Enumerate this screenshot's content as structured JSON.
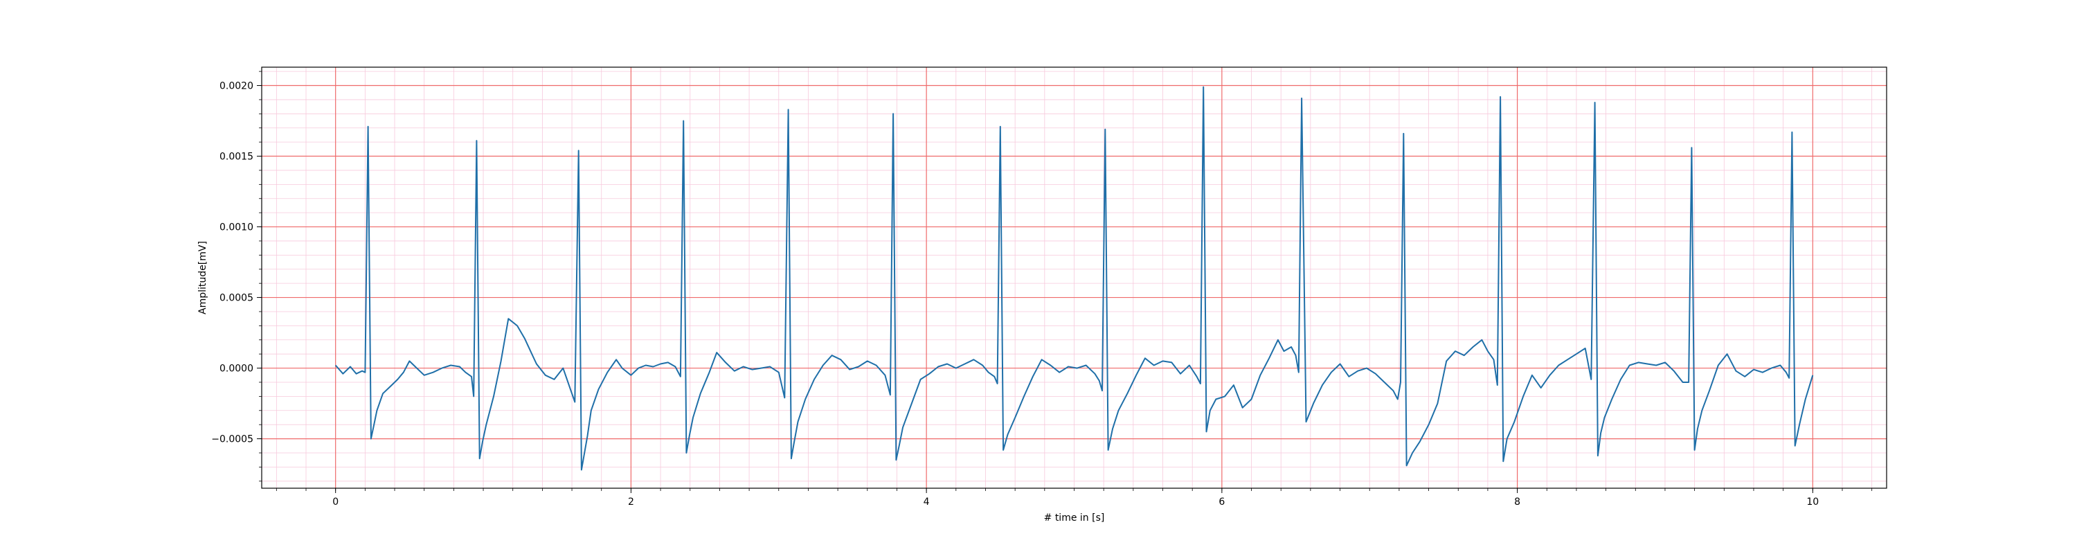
{
  "chart_data": {
    "type": "line",
    "title": "",
    "xlabel": "# time in [s]",
    "ylabel": "Amplitude[mV]",
    "xlim": [
      -0.5,
      10.5
    ],
    "ylim": [
      -0.00085,
      0.00213
    ],
    "x_ticks": [
      0,
      2,
      4,
      6,
      8,
      10
    ],
    "x_tick_labels": [
      "0",
      "2",
      "4",
      "6",
      "8",
      "10"
    ],
    "y_ticks": [
      -0.0005,
      0.0,
      0.0005,
      0.001,
      0.0015,
      0.002
    ],
    "y_tick_labels": [
      "−0.0005",
      "0.0000",
      "0.0005",
      "0.0010",
      "0.0015",
      "0.0020"
    ],
    "grid": {
      "major": true,
      "minor": true,
      "major_color": "#ef6b6b",
      "minor_color": "#f7c9dc"
    },
    "line_color": "#1f6fa8",
    "series": [
      {
        "name": "",
        "x": [
          0.0,
          0.05,
          0.1,
          0.14,
          0.18,
          0.2,
          0.22,
          0.24,
          0.26,
          0.28,
          0.32,
          0.38,
          0.42,
          0.46,
          0.5,
          0.55,
          0.6,
          0.66,
          0.72,
          0.78,
          0.84,
          0.88,
          0.92,
          0.935,
          0.955,
          0.975,
          0.995,
          1.02,
          1.07,
          1.12,
          1.17,
          1.23,
          1.28,
          1.32,
          1.36,
          1.42,
          1.48,
          1.54,
          1.58,
          1.62,
          1.645,
          1.665,
          1.685,
          1.705,
          1.73,
          1.78,
          1.84,
          1.9,
          1.94,
          2.0,
          2.05,
          2.1,
          2.15,
          2.2,
          2.25,
          2.3,
          2.335,
          2.355,
          2.375,
          2.395,
          2.42,
          2.47,
          2.53,
          2.58,
          2.64,
          2.7,
          2.76,
          2.82,
          2.88,
          2.94,
          3.0,
          3.04,
          3.065,
          3.085,
          3.105,
          3.13,
          3.18,
          3.24,
          3.3,
          3.36,
          3.42,
          3.48,
          3.54,
          3.6,
          3.66,
          3.72,
          3.755,
          3.775,
          3.795,
          3.815,
          3.84,
          3.9,
          3.96,
          4.02,
          4.08,
          4.14,
          4.2,
          4.26,
          4.32,
          4.38,
          4.42,
          4.46,
          4.48,
          4.5,
          4.52,
          4.55,
          4.6,
          4.66,
          4.72,
          4.78,
          4.84,
          4.9,
          4.96,
          5.02,
          5.08,
          5.14,
          5.17,
          5.19,
          5.21,
          5.23,
          5.26,
          5.3,
          5.36,
          5.42,
          5.48,
          5.54,
          5.6,
          5.66,
          5.72,
          5.78,
          5.83,
          5.855,
          5.875,
          5.895,
          5.92,
          5.96,
          6.02,
          6.08,
          6.14,
          6.2,
          6.26,
          6.32,
          6.38,
          6.42,
          6.47,
          6.5,
          6.52,
          6.54,
          6.57,
          6.62,
          6.68,
          6.74,
          6.8,
          6.86,
          6.92,
          6.98,
          7.04,
          7.1,
          7.16,
          7.19,
          7.21,
          7.23,
          7.25,
          7.29,
          7.34,
          7.4,
          7.46,
          7.52,
          7.58,
          7.64,
          7.7,
          7.76,
          7.8,
          7.84,
          7.865,
          7.885,
          7.905,
          7.93,
          7.98,
          8.04,
          8.1,
          8.16,
          8.22,
          8.28,
          8.34,
          8.4,
          8.46,
          8.5,
          8.525,
          8.545,
          8.565,
          8.59,
          8.64,
          8.7,
          8.76,
          8.82,
          8.88,
          8.94,
          9.0,
          9.06,
          9.12,
          9.16,
          9.18,
          9.2,
          9.22,
          9.25,
          9.3,
          9.36,
          9.42,
          9.48,
          9.54,
          9.6,
          9.66,
          9.72,
          9.78,
          9.82,
          9.84,
          9.86,
          9.88,
          9.91,
          9.95,
          10.0
        ],
        "y": [
          2e-05,
          -4e-05,
          1e-05,
          -4e-05,
          -2e-05,
          -3e-05,
          0.00171,
          -0.0005,
          -0.0004,
          -0.0003,
          -0.00018,
          -0.00012,
          -8e-05,
          -3e-05,
          5e-05,
          0.0,
          -5e-05,
          -3e-05,
          0.0,
          2e-05,
          1e-05,
          -3e-05,
          -6e-05,
          -0.0002,
          0.00161,
          -0.00064,
          -0.00052,
          -0.0004,
          -0.0002,
          5e-05,
          0.00035,
          0.0003,
          0.00021,
          0.00012,
          3e-05,
          -5e-05,
          -8e-05,
          0.0,
          -0.00012,
          -0.00024,
          0.00154,
          -0.00072,
          -0.0006,
          -0.00048,
          -0.0003,
          -0.00015,
          -3e-05,
          6e-05,
          0.0,
          -5e-05,
          0.0,
          2e-05,
          1e-05,
          3e-05,
          4e-05,
          1e-05,
          -6e-05,
          0.00175,
          -0.0006,
          -0.00048,
          -0.00035,
          -0.00018,
          -3e-05,
          0.00011,
          4e-05,
          -2e-05,
          1e-05,
          -1e-05,
          0.0,
          1e-05,
          -3e-05,
          -0.00021,
          0.00183,
          -0.00064,
          -0.00052,
          -0.00038,
          -0.00022,
          -8e-05,
          2e-05,
          9e-05,
          6e-05,
          -1e-05,
          1e-05,
          5e-05,
          2e-05,
          -5e-05,
          -0.00019,
          0.0018,
          -0.00065,
          -0.00055,
          -0.00042,
          -0.00025,
          -8e-05,
          -4e-05,
          1e-05,
          3e-05,
          0.0,
          3e-05,
          6e-05,
          2e-05,
          -3e-05,
          -6e-05,
          -0.00011,
          0.00171,
          -0.00058,
          -0.00047,
          -0.00035,
          -0.0002,
          -6e-05,
          6e-05,
          2e-05,
          -3e-05,
          1e-05,
          0.0,
          2e-05,
          -4e-05,
          -9e-05,
          -0.00016,
          0.00169,
          -0.00058,
          -0.00043,
          -0.0003,
          -0.00018,
          -5e-05,
          7e-05,
          2e-05,
          5e-05,
          4e-05,
          -4e-05,
          2e-05,
          -6e-05,
          -0.00011,
          0.00199,
          -0.00045,
          -0.0003,
          -0.00022,
          -0.0002,
          -0.00012,
          -0.00028,
          -0.00022,
          -5e-05,
          7e-05,
          0.0002,
          0.00012,
          0.00015,
          9e-05,
          -3e-05,
          0.00191,
          -0.00038,
          -0.00025,
          -0.00012,
          -3e-05,
          3e-05,
          -6e-05,
          -2e-05,
          0.0,
          -4e-05,
          -0.0001,
          -0.00016,
          -0.00022,
          -0.0001,
          0.00166,
          -0.00069,
          -0.0006,
          -0.00052,
          -0.0004,
          -0.00025,
          5e-05,
          0.00012,
          9e-05,
          0.00015,
          0.0002,
          0.00012,
          6e-05,
          -0.00012,
          0.00192,
          -0.00066,
          -0.0005,
          -0.00038,
          -0.0002,
          -5e-05,
          -0.00014,
          -5e-05,
          2e-05,
          6e-05,
          0.0001,
          0.00014,
          -8e-05,
          0.00188,
          -0.00062,
          -0.00046,
          -0.00035,
          -0.00022,
          -8e-05,
          2e-05,
          4e-05,
          3e-05,
          2e-05,
          4e-05,
          -2e-05,
          -0.0001,
          -0.0001,
          0.00156,
          -0.00058,
          -0.00043,
          -0.0003,
          -0.00016,
          2e-05,
          0.0001,
          -2e-05,
          -6e-05,
          -1e-05,
          -3e-05,
          0.0,
          2e-05,
          -3e-05,
          -7e-05,
          0.00167,
          -0.00055,
          -0.0004,
          -0.00022,
          -5e-05
        ]
      }
    ]
  }
}
